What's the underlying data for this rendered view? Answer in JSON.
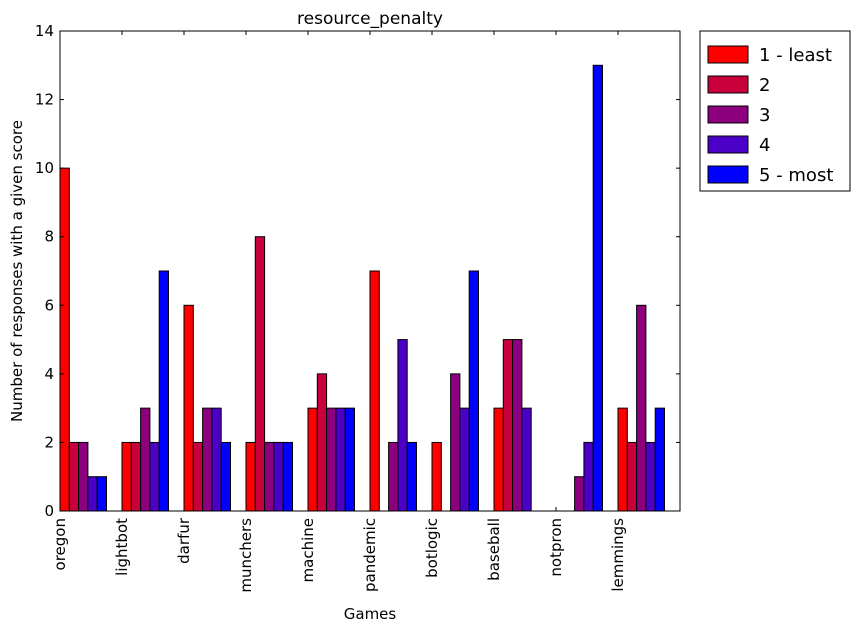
{
  "chart_data": {
    "type": "bar",
    "title": "resource_penalty",
    "xlabel": "Games",
    "ylabel": "Number of responses with a given score",
    "ylim": [
      0,
      14
    ],
    "yticks": [
      0,
      2,
      4,
      6,
      8,
      10,
      12,
      14
    ],
    "grid": false,
    "legend_position": "outside-top-right",
    "categories": [
      "oregon",
      "lightbot",
      "darfur",
      "munchers",
      "machine",
      "pandemic",
      "botlogic",
      "baseball",
      "notpron",
      "lemmings"
    ],
    "series": [
      {
        "name": "1 - least",
        "color": "#ff0000",
        "values": [
          10,
          2,
          6,
          2,
          3,
          7,
          2,
          3,
          0,
          3
        ]
      },
      {
        "name": "2",
        "color": "#c8003c",
        "values": [
          2,
          2,
          2,
          8,
          4,
          0,
          0,
          5,
          0,
          2
        ]
      },
      {
        "name": "3",
        "color": "#8c0080",
        "values": [
          2,
          3,
          3,
          2,
          3,
          2,
          4,
          5,
          1,
          6
        ]
      },
      {
        "name": "4",
        "color": "#4b00c8",
        "values": [
          1,
          2,
          3,
          2,
          3,
          5,
          3,
          3,
          2,
          2
        ]
      },
      {
        "name": "5 - most",
        "color": "#0000ff",
        "values": [
          1,
          7,
          2,
          2,
          3,
          2,
          7,
          0,
          13,
          3
        ]
      }
    ]
  }
}
